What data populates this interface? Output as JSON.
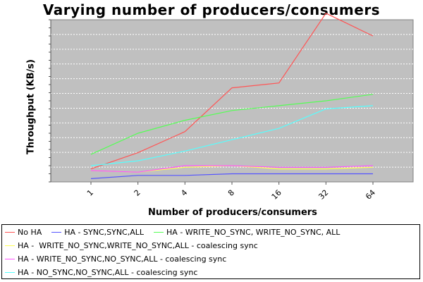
{
  "chart_data": {
    "type": "line",
    "title": "Varying number of producers/consumers",
    "xlabel": "Number of producers/consumers",
    "ylabel": "Throughput (KB/s)",
    "categories": [
      "1",
      "2",
      "4",
      "8",
      "16",
      "32",
      "64"
    ],
    "ylim": [
      0,
      100
    ],
    "grid": true,
    "legend_position": "bottom",
    "background": "#c0c0c0",
    "series": [
      {
        "name": "No HA",
        "color": "#ff5555",
        "values": [
          8,
          18,
          31,
          58,
          61,
          104,
          90
        ]
      },
      {
        "name": "HA - SYNC,SYNC,ALL",
        "color": "#5555ff",
        "values": [
          2,
          4,
          4,
          5,
          5,
          5,
          5
        ]
      },
      {
        "name": "HA - WRITE_NO_SYNC, WRITE_NO_SYNC, ALL",
        "color": "#55ff55",
        "values": [
          17,
          30,
          38,
          44,
          47,
          50,
          54
        ]
      },
      {
        "name": "HA -  WRITE_NO_SYNC,WRITE_NO_SYNC,ALL - coalescing sync",
        "color": "#ffff55",
        "values": [
          7,
          6,
          9,
          10,
          8,
          8,
          9
        ]
      },
      {
        "name": "HA - WRITE_NO_SYNC,NO_SYNC,ALL - coalescing sync",
        "color": "#ff55ff",
        "values": [
          7,
          6,
          10,
          10,
          9,
          9,
          10
        ]
      },
      {
        "name": "HA - NO_SYNC,NO_SYNC,ALL - coalescing sync",
        "color": "#55ffff",
        "values": [
          10,
          13,
          19,
          26,
          33,
          45,
          47
        ]
      }
    ]
  }
}
